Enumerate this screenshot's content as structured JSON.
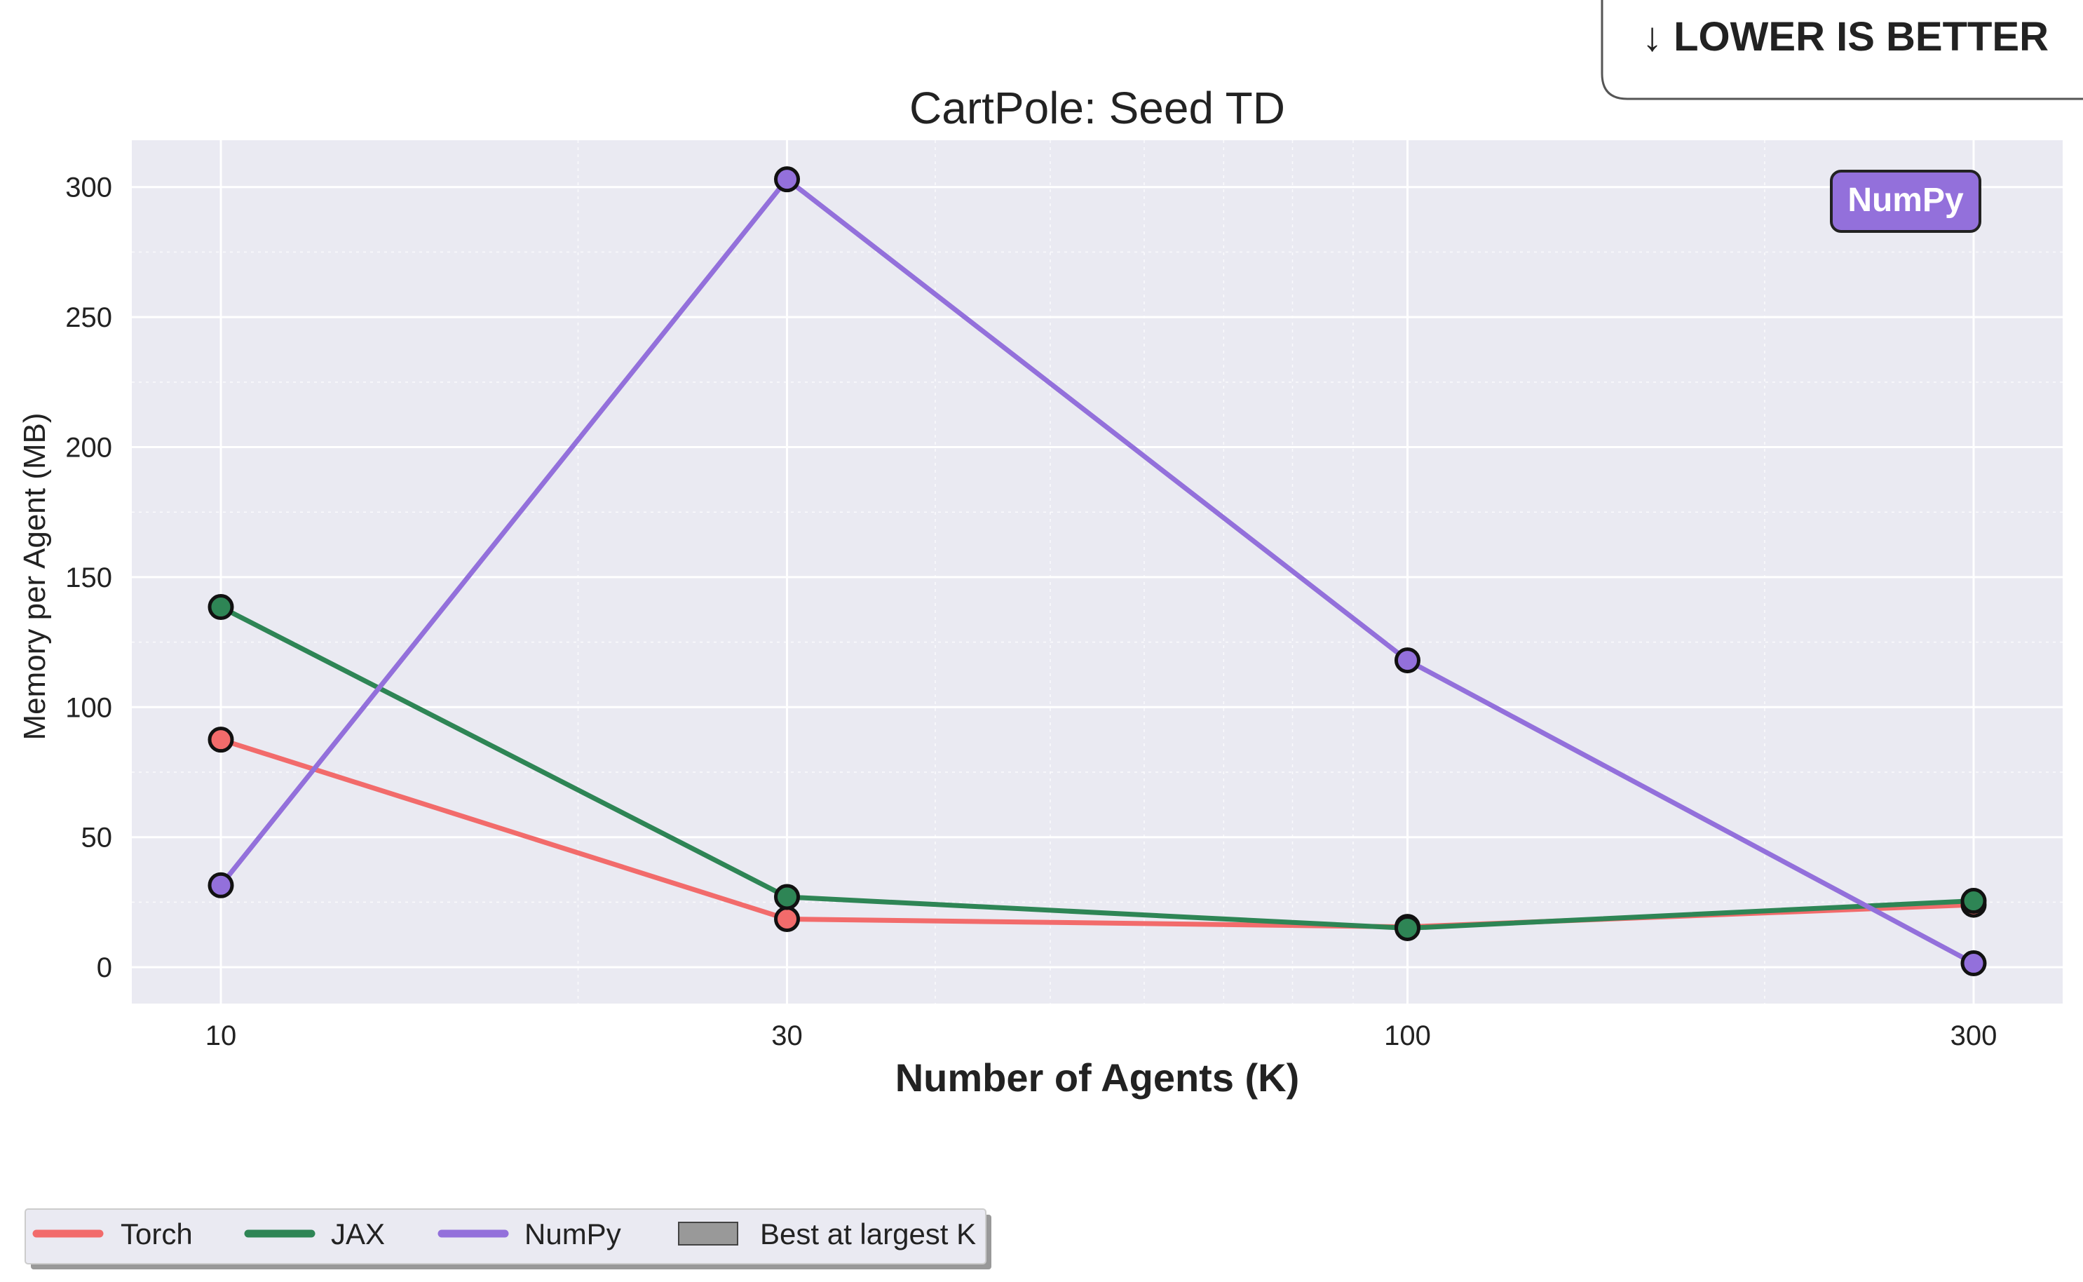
{
  "chart_data": {
    "type": "line",
    "title": "CartPole: Seed TD",
    "xlabel": "Number of Agents (K)",
    "ylabel": "Memory per Agent (MB)",
    "x_scale": "log",
    "x": [
      10,
      30,
      100,
      300
    ],
    "x_tick_labels": [
      "10",
      "30",
      "100",
      "300"
    ],
    "y_ticks": [
      0,
      50,
      100,
      150,
      200,
      250,
      300
    ],
    "ylim": [
      -14,
      318
    ],
    "grid": true,
    "series": [
      {
        "name": "Torch",
        "color": "#f26b6b",
        "values": [
          87.5,
          18.5,
          15.5,
          24.0
        ]
      },
      {
        "name": "JAX",
        "color": "#2e8555",
        "values": [
          138.5,
          27.0,
          15.0,
          25.5
        ]
      },
      {
        "name": "NumPy",
        "color": "#9370db",
        "values": [
          31.5,
          303.0,
          118.0,
          1.5
        ]
      }
    ],
    "legend": {
      "placement": "bottom-left",
      "entries": [
        {
          "label": "Torch",
          "kind": "line",
          "color": "#f26b6b"
        },
        {
          "label": "JAX",
          "kind": "line",
          "color": "#2e8555"
        },
        {
          "label": "NumPy",
          "kind": "line",
          "color": "#9370db"
        },
        {
          "label": "Best at largest K",
          "kind": "patch",
          "color": "#999999"
        }
      ]
    },
    "callout": {
      "text": "↓ LOWER IS BETTER"
    },
    "best_badge": {
      "text": "NumPy",
      "color": "#9370db"
    }
  }
}
